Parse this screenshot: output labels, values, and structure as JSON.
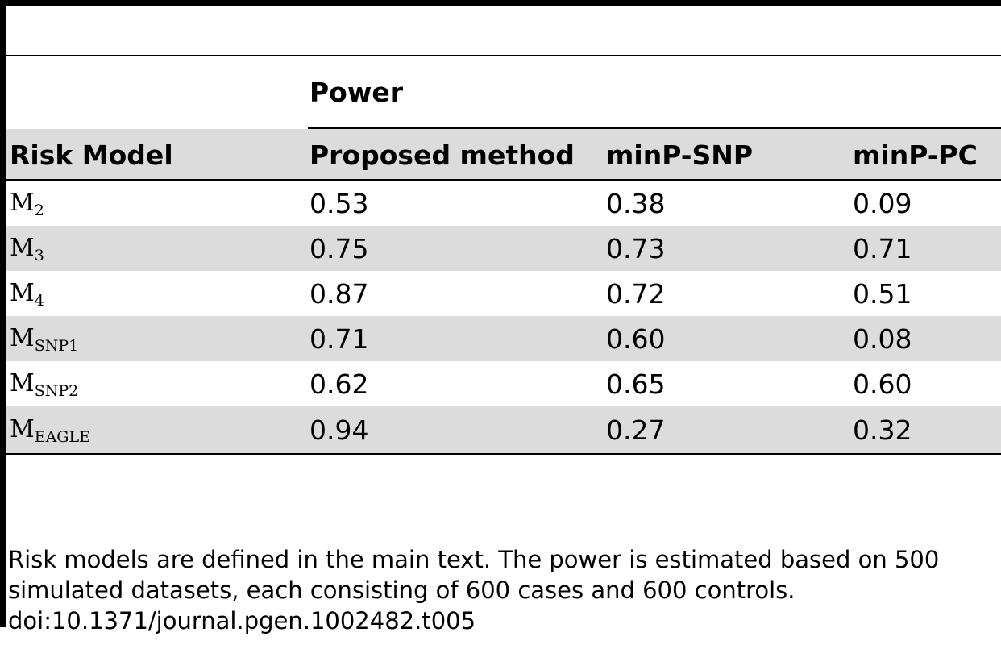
{
  "table": {
    "power_header": "Power",
    "columns": [
      "Risk Model",
      "Proposed method",
      "minP-SNP",
      "minP-PC"
    ],
    "rows": [
      {
        "model_base": "M",
        "model_sub": "2",
        "values": [
          "0.53",
          "0.38",
          "0.09"
        ]
      },
      {
        "model_base": "M",
        "model_sub": "3",
        "values": [
          "0.75",
          "0.73",
          "0.71"
        ]
      },
      {
        "model_base": "M",
        "model_sub": "4",
        "values": [
          "0.87",
          "0.72",
          "0.51"
        ]
      },
      {
        "model_base": "M",
        "model_sub": "SNP1",
        "values": [
          "0.71",
          "0.60",
          "0.08"
        ]
      },
      {
        "model_base": "M",
        "model_sub": "SNP2",
        "values": [
          "0.62",
          "0.65",
          "0.60"
        ]
      },
      {
        "model_base": "M",
        "model_sub": "EAGLE",
        "values": [
          "0.94",
          "0.27",
          "0.32"
        ]
      }
    ]
  },
  "footnote": {
    "line1": "Risk models are defined in the main text. The power is estimated based on 500",
    "line2": "simulated datasets, each consisting of 600 cases and 600 controls.",
    "doi": "doi:10.1371/journal.pgen.1002482.t005"
  }
}
